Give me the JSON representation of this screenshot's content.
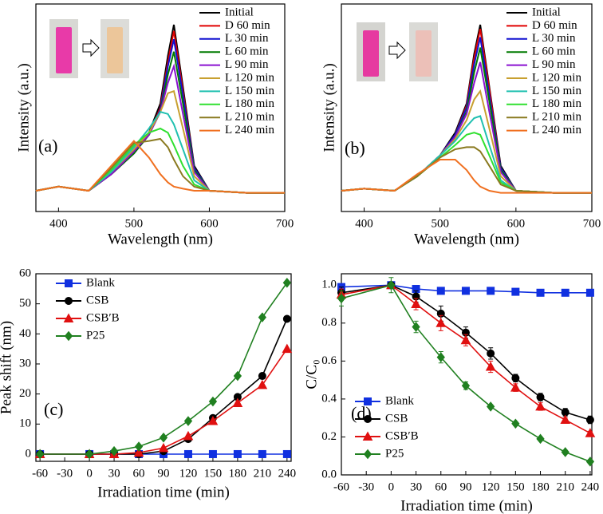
{
  "chart_data": [
    {
      "type": "line",
      "label": "(a)",
      "x_label": "Wavelength (nm)",
      "y_label": "Intensity (a.u.)",
      "xlim": [
        370,
        700
      ],
      "ylim": [
        0,
        1
      ],
      "xticks": [
        400,
        500,
        600,
        700
      ],
      "legend": "upper right",
      "x": [
        370,
        400,
        440,
        470,
        500,
        520,
        535,
        545,
        553,
        565,
        580,
        600,
        650,
        700
      ],
      "series": [
        {
          "name": "Initial",
          "color": "#000000",
          "values": [
            0.1,
            0.12,
            0.1,
            0.18,
            0.28,
            0.38,
            0.52,
            0.75,
            0.9,
            0.6,
            0.22,
            0.1,
            0.09,
            0.09
          ]
        },
        {
          "name": "D 60 min",
          "color": "#e00000",
          "values": [
            0.1,
            0.12,
            0.1,
            0.18,
            0.28,
            0.37,
            0.5,
            0.72,
            0.87,
            0.58,
            0.21,
            0.1,
            0.09,
            0.09
          ]
        },
        {
          "name": "L 30 min",
          "color": "#1010d0",
          "values": [
            0.1,
            0.12,
            0.1,
            0.18,
            0.28,
            0.37,
            0.49,
            0.7,
            0.83,
            0.56,
            0.21,
            0.1,
            0.09,
            0.09
          ]
        },
        {
          "name": "L 60 min",
          "color": "#007a00",
          "values": [
            0.1,
            0.12,
            0.1,
            0.18,
            0.28,
            0.37,
            0.48,
            0.66,
            0.77,
            0.52,
            0.2,
            0.1,
            0.09,
            0.09
          ]
        },
        {
          "name": "L 90 min",
          "color": "#8a10d0",
          "values": [
            0.1,
            0.12,
            0.1,
            0.18,
            0.29,
            0.37,
            0.48,
            0.62,
            0.7,
            0.47,
            0.19,
            0.1,
            0.09,
            0.09
          ]
        },
        {
          "name": "L 120 min",
          "color": "#c8a030",
          "values": [
            0.1,
            0.12,
            0.1,
            0.19,
            0.3,
            0.38,
            0.48,
            0.57,
            0.58,
            0.4,
            0.17,
            0.1,
            0.09,
            0.09
          ]
        },
        {
          "name": "L 150 min",
          "color": "#20c0b0",
          "values": [
            0.1,
            0.12,
            0.1,
            0.19,
            0.31,
            0.4,
            0.48,
            0.47,
            0.42,
            0.3,
            0.15,
            0.1,
            0.09,
            0.09
          ]
        },
        {
          "name": "L 180 min",
          "color": "#30e030",
          "values": [
            0.1,
            0.12,
            0.1,
            0.2,
            0.32,
            0.38,
            0.4,
            0.38,
            0.32,
            0.22,
            0.13,
            0.1,
            0.09,
            0.09
          ]
        },
        {
          "name": "L 210 min",
          "color": "#8a7a20",
          "values": [
            0.1,
            0.12,
            0.1,
            0.21,
            0.33,
            0.34,
            0.35,
            0.31,
            0.25,
            0.17,
            0.12,
            0.1,
            0.09,
            0.09
          ]
        },
        {
          "name": "L 240 min",
          "color": "#f07020",
          "values": [
            0.1,
            0.12,
            0.1,
            0.22,
            0.34,
            0.26,
            0.18,
            0.14,
            0.12,
            0.11,
            0.1,
            0.1,
            0.09,
            0.09
          ]
        }
      ]
    },
    {
      "type": "line",
      "label": "(b)",
      "x_label": "Wavelength (nm)",
      "y_label": "Intensity (a.u.)",
      "xlim": [
        370,
        700
      ],
      "ylim": [
        0,
        1
      ],
      "xticks": [
        400,
        500,
        600,
        700
      ],
      "legend": "upper right",
      "x": [
        370,
        400,
        440,
        470,
        500,
        520,
        535,
        545,
        553,
        565,
        580,
        600,
        650,
        700
      ],
      "series": [
        {
          "name": "Initial",
          "color": "#000000",
          "values": [
            0.1,
            0.11,
            0.1,
            0.17,
            0.27,
            0.38,
            0.52,
            0.76,
            0.9,
            0.6,
            0.22,
            0.1,
            0.09,
            0.09
          ]
        },
        {
          "name": "D 60 min",
          "color": "#e00000",
          "values": [
            0.1,
            0.11,
            0.1,
            0.17,
            0.27,
            0.37,
            0.51,
            0.74,
            0.88,
            0.59,
            0.21,
            0.1,
            0.09,
            0.09
          ]
        },
        {
          "name": "L 30 min",
          "color": "#1010d0",
          "values": [
            0.1,
            0.11,
            0.1,
            0.17,
            0.27,
            0.37,
            0.5,
            0.71,
            0.84,
            0.56,
            0.21,
            0.1,
            0.09,
            0.09
          ]
        },
        {
          "name": "L 60 min",
          "color": "#007a00",
          "values": [
            0.1,
            0.11,
            0.1,
            0.17,
            0.27,
            0.36,
            0.48,
            0.67,
            0.79,
            0.53,
            0.2,
            0.1,
            0.09,
            0.09
          ]
        },
        {
          "name": "L 90 min",
          "color": "#8a10d0",
          "values": [
            0.1,
            0.11,
            0.1,
            0.17,
            0.27,
            0.36,
            0.47,
            0.62,
            0.72,
            0.48,
            0.19,
            0.1,
            0.09,
            0.09
          ]
        },
        {
          "name": "L 120 min",
          "color": "#c8a030",
          "values": [
            0.1,
            0.11,
            0.1,
            0.17,
            0.27,
            0.35,
            0.44,
            0.54,
            0.58,
            0.4,
            0.17,
            0.1,
            0.09,
            0.09
          ]
        },
        {
          "name": "L 150 min",
          "color": "#20c0b0",
          "values": [
            0.1,
            0.11,
            0.1,
            0.17,
            0.27,
            0.34,
            0.41,
            0.45,
            0.46,
            0.32,
            0.15,
            0.1,
            0.09,
            0.09
          ]
        },
        {
          "name": "L 180 min",
          "color": "#30e030",
          "values": [
            0.1,
            0.11,
            0.1,
            0.17,
            0.26,
            0.32,
            0.37,
            0.38,
            0.37,
            0.27,
            0.14,
            0.1,
            0.09,
            0.09
          ]
        },
        {
          "name": "L 210 min",
          "color": "#8a7a20",
          "values": [
            0.1,
            0.11,
            0.1,
            0.17,
            0.26,
            0.3,
            0.31,
            0.31,
            0.29,
            0.22,
            0.13,
            0.1,
            0.09,
            0.09
          ]
        },
        {
          "name": "L 240 min",
          "color": "#f07020",
          "values": [
            0.1,
            0.11,
            0.1,
            0.18,
            0.25,
            0.25,
            0.2,
            0.15,
            0.12,
            0.1,
            0.09,
            0.09,
            0.09,
            0.09
          ]
        }
      ]
    },
    {
      "type": "line",
      "label": "(c)",
      "x_label": "Irradiation time (min)",
      "y_label": "Peak shift (nm)",
      "xlim": [
        -65,
        245
      ],
      "ylim": [
        -2.4,
        60
      ],
      "xticks": [
        -60,
        -30,
        0,
        30,
        60,
        90,
        120,
        150,
        180,
        210,
        240
      ],
      "yticks": [
        0,
        10,
        20,
        30,
        40,
        50,
        60
      ],
      "legend": "upper left",
      "x": [
        -60,
        0,
        30,
        60,
        90,
        120,
        150,
        180,
        210,
        240
      ],
      "series": [
        {
          "name": "Blank",
          "color": "#1030e0",
          "marker": "square",
          "values": [
            0,
            0,
            0,
            0,
            0,
            0,
            0,
            0,
            0,
            0
          ]
        },
        {
          "name": "CSB",
          "color": "#000000",
          "marker": "circle",
          "values": [
            0,
            0,
            0,
            0,
            1,
            5,
            12,
            19,
            26,
            45
          ]
        },
        {
          "name": "CSB′B",
          "color": "#e01010",
          "marker": "triangle",
          "values": [
            0,
            0,
            0,
            0.5,
            2,
            6,
            11,
            17,
            23,
            35
          ]
        },
        {
          "name": "P25",
          "color": "#208020",
          "marker": "diamond",
          "values": [
            0,
            0,
            1,
            2.5,
            5.5,
            11,
            17.5,
            26,
            45.5,
            57
          ]
        }
      ]
    },
    {
      "type": "line",
      "label": "(d)",
      "x_label": "Irradiation time (min)",
      "y_label": "C/C₀",
      "xlim": [
        -60,
        242
      ],
      "ylim": [
        0,
        1.06
      ],
      "xticks": [
        -60,
        -30,
        0,
        30,
        60,
        90,
        120,
        150,
        180,
        210,
        240
      ],
      "yticks": [
        {
          "value": 0,
          "label": "0.0"
        },
        0.2,
        0.4,
        0.6,
        0.8,
        {
          "value": 1,
          "label": "1.0"
        }
      ],
      "legend": "lower left",
      "x": [
        -60,
        0,
        30,
        60,
        90,
        120,
        150,
        180,
        210,
        240
      ],
      "series": [
        {
          "name": "Blank",
          "color": "#1030e0",
          "marker": "square",
          "values": [
            0.99,
            1.0,
            0.98,
            0.97,
            0.97,
            0.97,
            0.965,
            0.96,
            0.96,
            0.96
          ],
          "errors": [
            0.01,
            0.01,
            0.01,
            0.01,
            0.01,
            0.01,
            0.01,
            0.01,
            0.01,
            0.01
          ]
        },
        {
          "name": "CSB",
          "color": "#000000",
          "marker": "circle",
          "values": [
            0.96,
            1.0,
            0.94,
            0.85,
            0.75,
            0.64,
            0.51,
            0.41,
            0.33,
            0.29
          ],
          "errors": [
            0.03,
            0.01,
            0.03,
            0.04,
            0.03,
            0.03,
            0.02,
            0.02,
            0.02,
            0.02
          ]
        },
        {
          "name": "CSB′B",
          "color": "#e01010",
          "marker": "triangle",
          "values": [
            0.95,
            1.0,
            0.9,
            0.8,
            0.71,
            0.57,
            0.46,
            0.36,
            0.29,
            0.22
          ],
          "errors": [
            0.03,
            0.01,
            0.03,
            0.04,
            0.03,
            0.03,
            0.02,
            0.02,
            0.01,
            0.01
          ]
        },
        {
          "name": "P25",
          "color": "#208020",
          "marker": "diamond",
          "values": [
            0.93,
            1.0,
            0.78,
            0.62,
            0.47,
            0.36,
            0.27,
            0.19,
            0.12,
            0.07
          ],
          "errors": [
            0.04,
            0.04,
            0.03,
            0.03,
            0.02,
            0.01,
            0.01,
            0.01,
            0.01,
            0.01
          ]
        }
      ]
    }
  ]
}
